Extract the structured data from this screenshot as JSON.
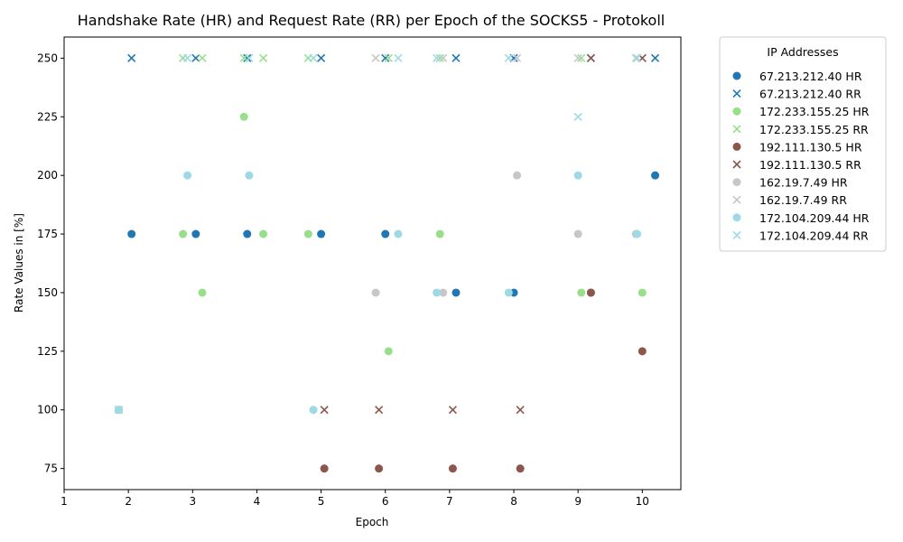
{
  "chart_data": {
    "type": "scatter",
    "title": "Handshake Rate (HR) and Request Rate (RR) per Epoch of the SOCKS5 - Protokoll",
    "xlabel": "Epoch",
    "ylabel": "Rate Values in [%]",
    "xlim": [
      1,
      10.6
    ],
    "ylim": [
      66,
      259
    ],
    "xticks": [
      "1",
      "2",
      "3",
      "4",
      "5",
      "6",
      "7",
      "8",
      "9",
      "10"
    ],
    "yticks": [
      "75",
      "100",
      "125",
      "150",
      "175",
      "200",
      "225",
      "250"
    ],
    "legend_title": "IP Addresses",
    "legend_position": "outside-right",
    "series": [
      {
        "name": "67.213.212.40 HR",
        "ip": "67.213.212.40",
        "metric": "HR",
        "marker": "circle",
        "color": "#1f77b4",
        "points": [
          [
            1.85,
            100
          ],
          [
            2.05,
            175
          ],
          [
            3.05,
            175
          ],
          [
            3.85,
            175
          ],
          [
            5.0,
            175
          ],
          [
            6.0,
            175
          ],
          [
            7.1,
            150
          ],
          [
            8.0,
            150
          ],
          [
            9.2,
            150
          ],
          [
            10.2,
            200
          ]
        ]
      },
      {
        "name": "67.213.212.40 RR",
        "ip": "67.213.212.40",
        "metric": "RR",
        "marker": "x",
        "color": "#1f77b4",
        "points": [
          [
            1.85,
            100
          ],
          [
            2.05,
            250
          ],
          [
            3.05,
            250
          ],
          [
            3.85,
            250
          ],
          [
            5.0,
            250
          ],
          [
            6.0,
            250
          ],
          [
            7.1,
            250
          ],
          [
            8.0,
            250
          ],
          [
            9.2,
            250
          ],
          [
            10.2,
            250
          ]
        ]
      },
      {
        "name": "172.233.155.25 HR",
        "ip": "172.233.155.25",
        "metric": "HR",
        "marker": "circle",
        "color": "#98df8a",
        "points": [
          [
            1.85,
            100
          ],
          [
            2.85,
            175
          ],
          [
            3.15,
            150
          ],
          [
            3.8,
            225
          ],
          [
            4.1,
            175
          ],
          [
            4.8,
            175
          ],
          [
            6.05,
            125
          ],
          [
            6.85,
            175
          ],
          [
            9.05,
            150
          ],
          [
            10.0,
            150
          ]
        ]
      },
      {
        "name": "172.233.155.25 RR",
        "ip": "172.233.155.25",
        "metric": "RR",
        "marker": "x",
        "color": "#98df8a",
        "points": [
          [
            1.85,
            100
          ],
          [
            2.85,
            250
          ],
          [
            3.15,
            250
          ],
          [
            3.8,
            250
          ],
          [
            4.1,
            250
          ],
          [
            4.8,
            250
          ],
          [
            6.05,
            250
          ],
          [
            6.85,
            250
          ],
          [
            9.05,
            250
          ],
          [
            10.0,
            250
          ]
        ]
      },
      {
        "name": "192.111.130.5 HR",
        "ip": "192.111.130.5",
        "metric": "HR",
        "marker": "circle",
        "color": "#8c564b",
        "points": [
          [
            5.05,
            75
          ],
          [
            5.9,
            75
          ],
          [
            7.05,
            75
          ],
          [
            8.1,
            75
          ],
          [
            9.2,
            150
          ],
          [
            10.0,
            125
          ]
        ]
      },
      {
        "name": "192.111.130.5 RR",
        "ip": "192.111.130.5",
        "metric": "RR",
        "marker": "x",
        "color": "#8c564b",
        "points": [
          [
            5.05,
            100
          ],
          [
            5.9,
            100
          ],
          [
            7.05,
            100
          ],
          [
            8.1,
            100
          ],
          [
            9.2,
            250
          ],
          [
            10.0,
            250
          ]
        ]
      },
      {
        "name": "162.19.7.49 HR",
        "ip": "162.19.7.49",
        "metric": "HR",
        "marker": "circle",
        "color": "#c7c7c7",
        "points": [
          [
            5.85,
            150
          ],
          [
            6.9,
            150
          ],
          [
            8.05,
            200
          ],
          [
            9.0,
            175
          ],
          [
            9.9,
            175
          ]
        ]
      },
      {
        "name": "162.19.7.49 RR",
        "ip": "162.19.7.49",
        "metric": "RR",
        "marker": "x",
        "color": "#c7c7c7",
        "points": [
          [
            5.85,
            250
          ],
          [
            6.9,
            250
          ],
          [
            8.05,
            250
          ],
          [
            9.0,
            250
          ],
          [
            9.9,
            250
          ]
        ]
      },
      {
        "name": "172.104.209.44 HR",
        "ip": "172.104.209.44",
        "metric": "HR",
        "marker": "circle",
        "color": "#9edae5",
        "points": [
          [
            1.85,
            100
          ],
          [
            2.92,
            200
          ],
          [
            3.88,
            200
          ],
          [
            4.88,
            100
          ],
          [
            6.2,
            175
          ],
          [
            6.8,
            150
          ],
          [
            7.92,
            150
          ],
          [
            9.0,
            200
          ],
          [
            9.92,
            175
          ]
        ]
      },
      {
        "name": "172.104.209.44 RR",
        "ip": "172.104.209.44",
        "metric": "RR",
        "marker": "x",
        "color": "#9edae5",
        "points": [
          [
            1.85,
            100
          ],
          [
            2.92,
            250
          ],
          [
            3.88,
            250
          ],
          [
            4.88,
            250
          ],
          [
            6.2,
            250
          ],
          [
            6.8,
            250
          ],
          [
            7.92,
            250
          ],
          [
            9.0,
            225
          ],
          [
            9.92,
            250
          ]
        ]
      }
    ]
  }
}
